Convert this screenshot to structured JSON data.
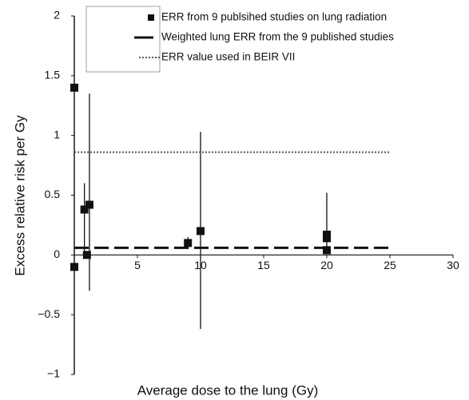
{
  "chart_data": {
    "type": "scatter",
    "x_label": "Average dose to the lung (Gy)",
    "y_label": "Excess relative risk per Gy",
    "xlim": [
      0,
      30
    ],
    "xticks": [
      5,
      10,
      15,
      20,
      25,
      30
    ],
    "ylim": [
      -1,
      2
    ],
    "yticks": [
      {
        "value": -1,
        "label": "−1"
      },
      {
        "value": -0.5,
        "label": "−0.5"
      },
      0,
      0.5,
      1,
      1.5,
      2
    ],
    "series": [
      {
        "name": "ERR from 9 publsihed studies on lung radiation",
        "kind": "points",
        "color": "#111111",
        "x": [
          0,
          0,
          0.8,
          1.2,
          1,
          9,
          10,
          20,
          20,
          20
        ],
        "values": [
          1.4,
          -0.1,
          0.38,
          0.42,
          0,
          0.1,
          0.2,
          0.17,
          0.14,
          0.04
        ],
        "lower": [
          -1,
          null,
          0,
          -0.3,
          null,
          0.05,
          -0.62,
          0.05,
          null,
          null
        ],
        "upper": [
          2,
          null,
          0.6,
          1.35,
          null,
          0.15,
          1.03,
          0.52,
          null,
          null
        ]
      },
      {
        "name": "Weighted lung ERR from the 9 published studies",
        "kind": "dashed",
        "color": "#111111",
        "x": [
          0,
          25
        ],
        "values": [
          0.06,
          0.06
        ]
      },
      {
        "name": "ERR value used in BEIR VII",
        "kind": "dotted",
        "color": "#555555",
        "x": [
          0,
          25
        ],
        "values": [
          0.86,
          0.86
        ]
      }
    ]
  }
}
